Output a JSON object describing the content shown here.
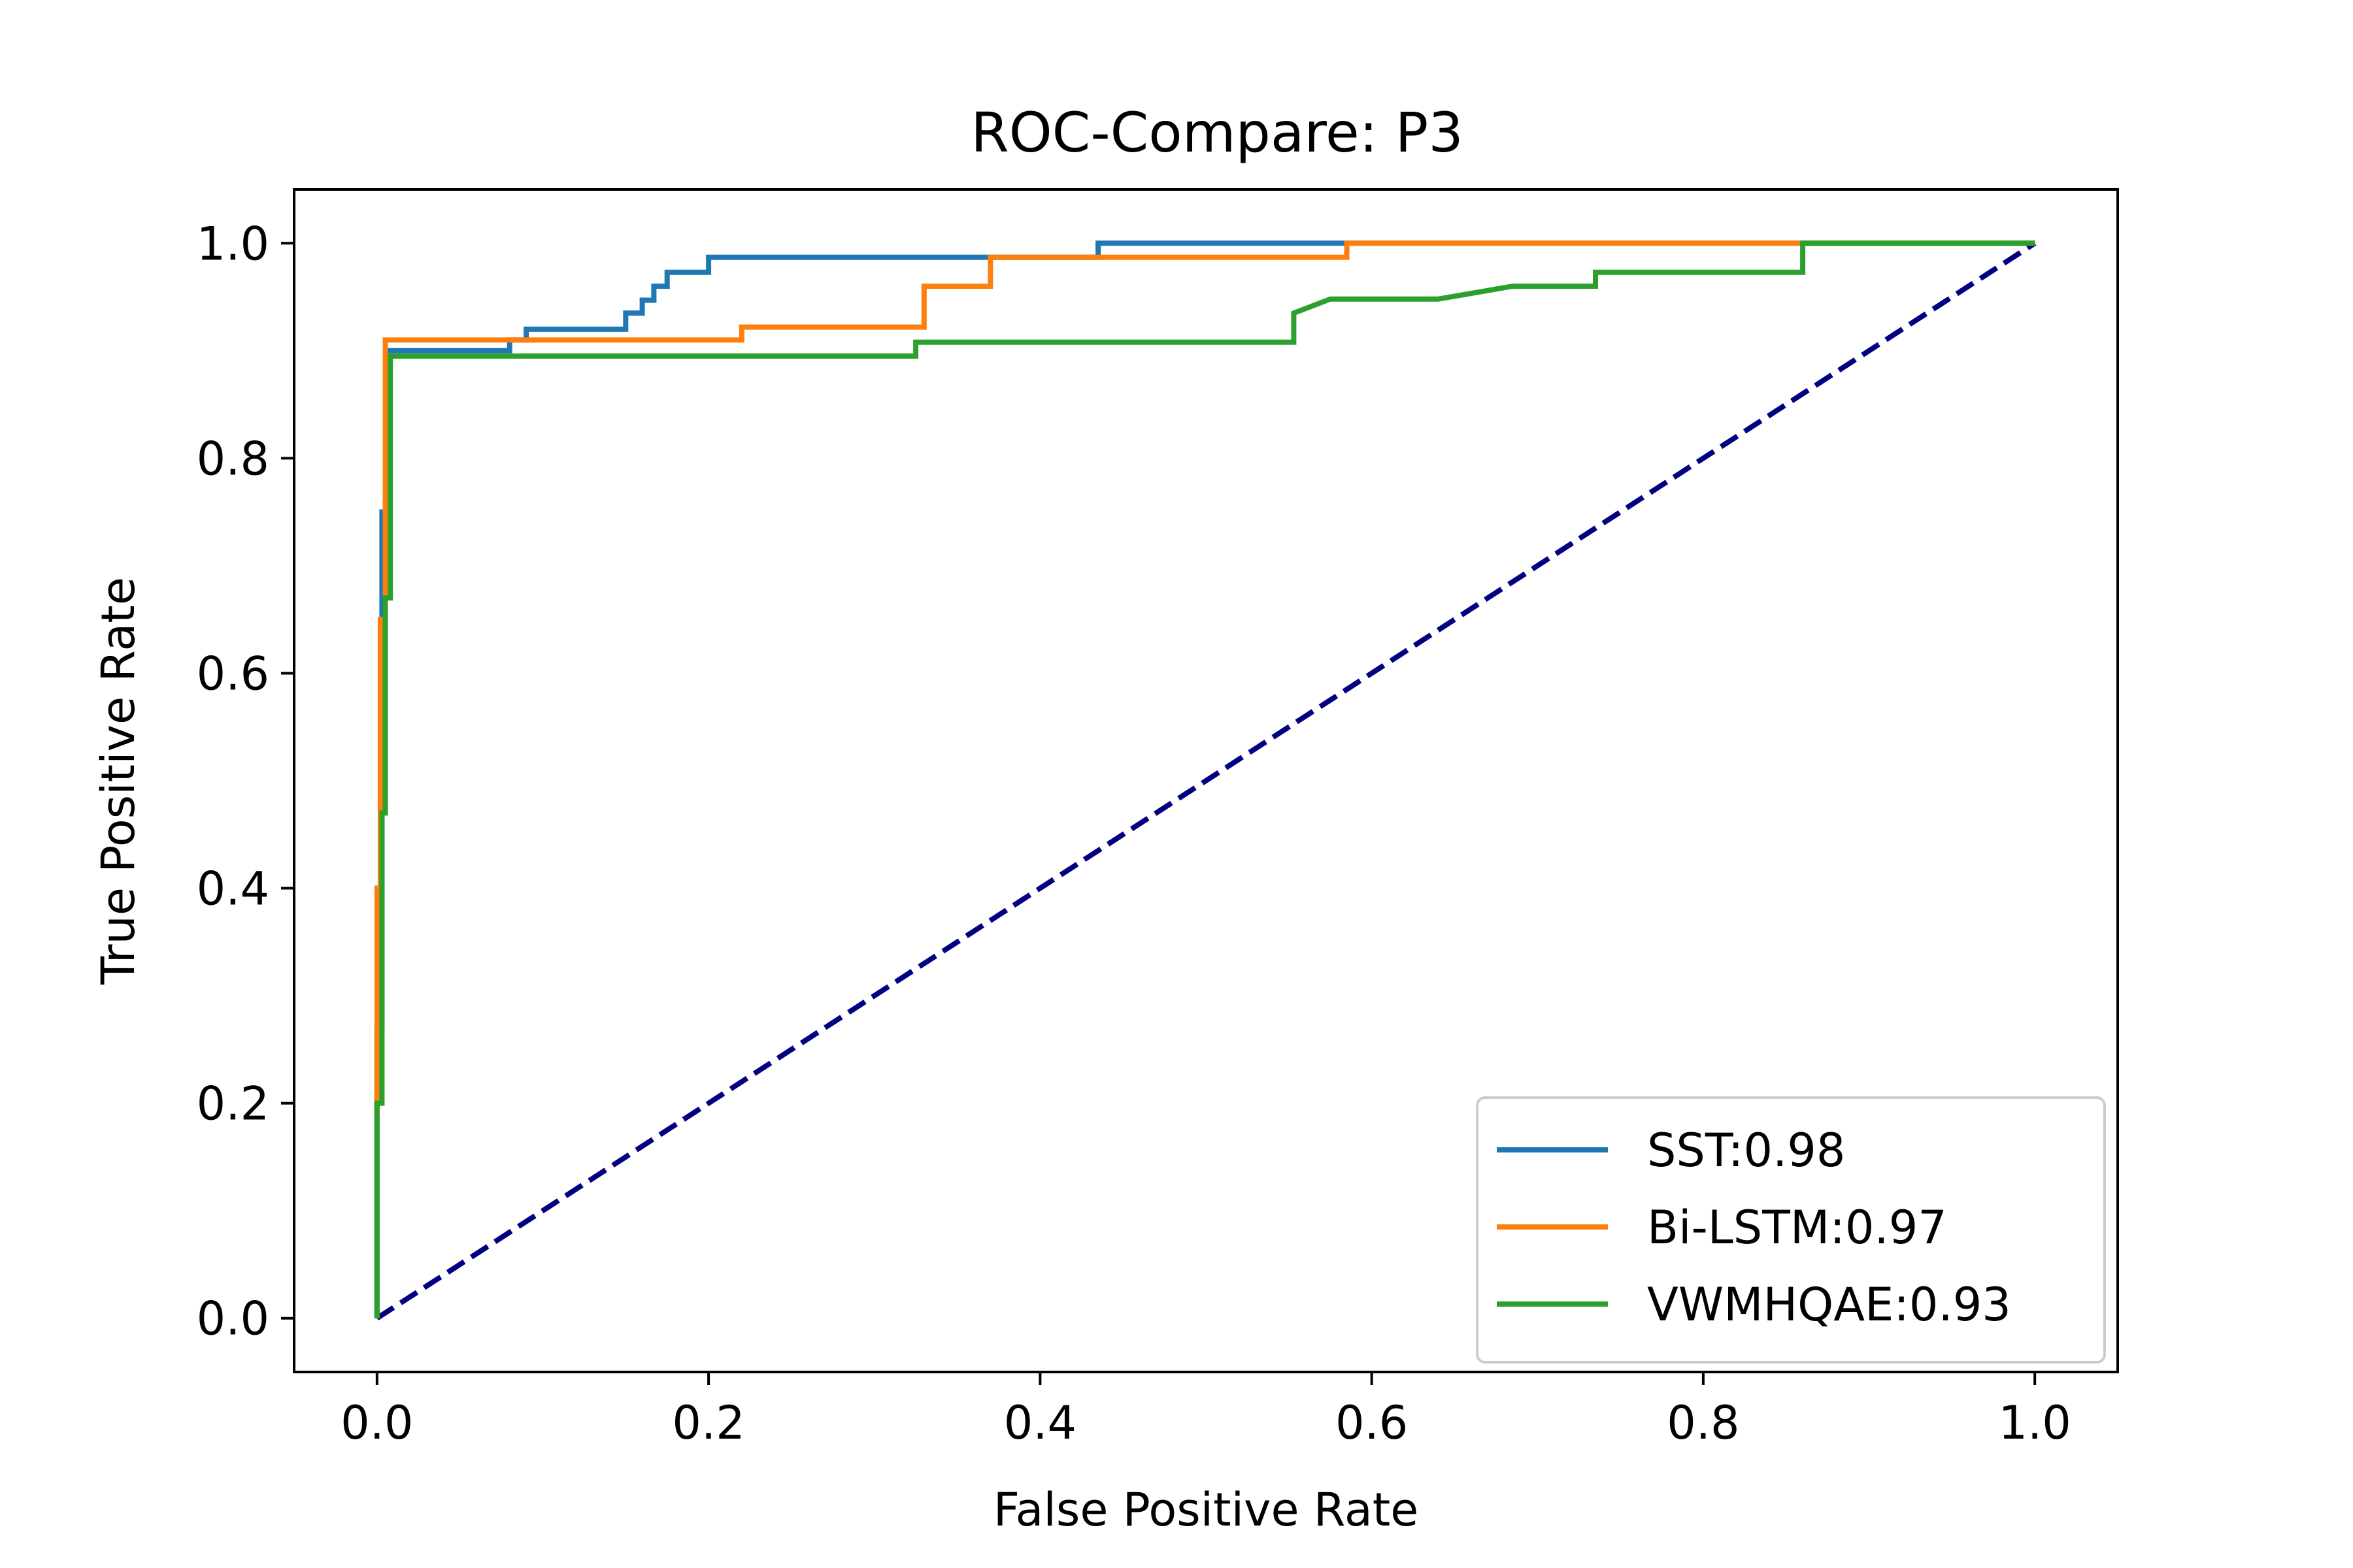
{
  "chart_data": {
    "type": "line",
    "title": "ROC-Compare: P3",
    "xlabel": "False Positive Rate",
    "ylabel": "True Positive Rate",
    "xlim": [
      -0.05,
      1.05
    ],
    "ylim": [
      -0.05,
      1.05
    ],
    "xticks": [
      "0.0",
      "0.2",
      "0.4",
      "0.6",
      "0.8",
      "1.0"
    ],
    "yticks": [
      "0.0",
      "0.2",
      "0.4",
      "0.6",
      "0.8",
      "1.0"
    ],
    "grid": false,
    "legend_position": "lower right",
    "series": [
      {
        "name": "SST:0.98",
        "color": "#1f77b4",
        "x": [
          0.0,
          0.0,
          0.003,
          0.003,
          0.005,
          0.005,
          0.08,
          0.08,
          0.09,
          0.09,
          0.15,
          0.15,
          0.16,
          0.16,
          0.167,
          0.167,
          0.175,
          0.175,
          0.2,
          0.2,
          0.435,
          0.435,
          0.585,
          0.585,
          1.0
        ],
        "y": [
          0.0,
          0.27,
          0.27,
          0.75,
          0.75,
          0.9,
          0.9,
          0.91,
          0.91,
          0.92,
          0.92,
          0.935,
          0.935,
          0.947,
          0.947,
          0.96,
          0.96,
          0.973,
          0.973,
          0.987,
          0.987,
          1.0,
          1.0,
          1.0,
          1.0
        ]
      },
      {
        "name": "Bi-LSTM:0.97",
        "color": "#ff7f0e",
        "x": [
          0.0,
          0.0,
          0.002,
          0.002,
          0.005,
          0.005,
          0.22,
          0.22,
          0.33,
          0.33,
          0.37,
          0.37,
          0.585,
          0.585,
          0.86,
          0.86,
          1.0
        ],
        "y": [
          0.0,
          0.4,
          0.4,
          0.65,
          0.65,
          0.91,
          0.91,
          0.922,
          0.922,
          0.96,
          0.96,
          0.987,
          0.987,
          1.0,
          1.0,
          1.0,
          1.0
        ]
      },
      {
        "name": "VWMHQAE:0.93",
        "color": "#2ca02c",
        "x": [
          0.0,
          0.0,
          0.003,
          0.003,
          0.005,
          0.005,
          0.008,
          0.008,
          0.325,
          0.325,
          0.553,
          0.553,
          0.575,
          0.64,
          0.685,
          0.685,
          0.735,
          0.735,
          0.86,
          0.86,
          1.0
        ],
        "y": [
          0.0,
          0.2,
          0.2,
          0.47,
          0.47,
          0.67,
          0.67,
          0.895,
          0.895,
          0.908,
          0.908,
          0.935,
          0.948,
          0.948,
          0.96,
          0.96,
          0.96,
          0.973,
          0.973,
          1.0,
          1.0
        ]
      },
      {
        "name": "",
        "color": "#000080",
        "dashed": true,
        "x": [
          0.0,
          1.0
        ],
        "y": [
          0.0,
          1.0
        ]
      }
    ]
  }
}
